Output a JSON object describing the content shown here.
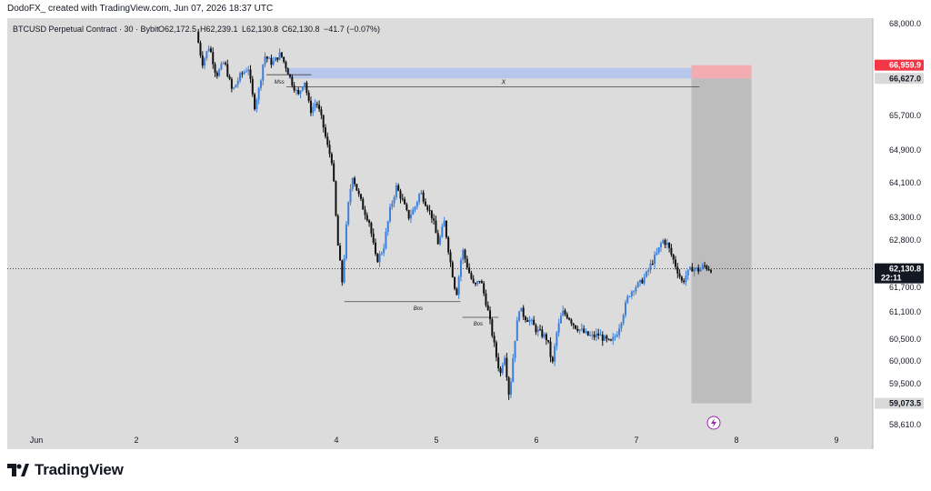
{
  "header": {
    "attribution": "DodoFX_ created with TradingView.com, Jun 07, 2026 18:37 UTC"
  },
  "legend": {
    "symbol": "BTCUSD Perpetual Contract · 30 · Bybit",
    "open": "O62,172.5",
    "high": "H62,239.1",
    "low": "L62,130.8",
    "close": "C62,130.8",
    "change": "−41.7 (−0.07%)"
  },
  "price_axis": {
    "ticks": [
      "68,000.0",
      "65,700.0",
      "64,900.0",
      "64,100.0",
      "63,300.0",
      "62,800.0",
      "61,700.0",
      "61,100.0",
      "60,500.0",
      "60,000.0",
      "59,500.0",
      "58,610.0"
    ],
    "tick_values": [
      68000,
      65700,
      64900,
      64100,
      63300,
      62800,
      61700,
      61100,
      60500,
      60000,
      59500,
      58610
    ],
    "stop_label": "66,959.9",
    "entry_label": "66,627.0",
    "target_label": "59,073.5",
    "current_price": "62,130.8",
    "countdown": "22:11"
  },
  "time_axis": {
    "labels": [
      "Jun",
      "2",
      "3",
      "4",
      "5",
      "6",
      "7",
      "8",
      "9"
    ]
  },
  "annotations": {
    "mss": "Mss",
    "x": "X",
    "bos1": "Bos",
    "bos2": "Bos"
  },
  "colors": {
    "background": "#dcdcdc",
    "up_candle": "#3d7fd9",
    "down_candle": "#111111",
    "stop_zone": "#f4a6ad",
    "entry_zone": "#b7c7ec",
    "target_zone": "#bdbdbd",
    "stop_badge": "#f23645",
    "entry_badge": "#d9d9d9",
    "current_badge": "#131722"
  },
  "chart_data": {
    "type": "candlestick",
    "title": "BTCUSD Perpetual Contract · 30 · Bybit",
    "xlabel": "",
    "ylabel": "",
    "ylim": [
      58400,
      68100
    ],
    "x_range_days": [
      1,
      9.2
    ],
    "price_levels": {
      "stop": 66959.9,
      "entry": 66627.0,
      "target": 59073.5,
      "current": 62130.8,
      "x_line": 66420,
      "bos1": 61350,
      "bos2": 60980
    },
    "path": [
      [
        2.62,
        67800
      ],
      [
        2.68,
        67000
      ],
      [
        2.75,
        67450
      ],
      [
        2.82,
        66700
      ],
      [
        2.9,
        67050
      ],
      [
        2.98,
        66300
      ],
      [
        3.06,
        66700
      ],
      [
        3.14,
        66900
      ],
      [
        3.2,
        65900
      ],
      [
        3.25,
        66400
      ],
      [
        3.3,
        67200
      ],
      [
        3.38,
        67000
      ],
      [
        3.46,
        67250
      ],
      [
        3.52,
        66900
      ],
      [
        3.58,
        66500
      ],
      [
        3.64,
        66200
      ],
      [
        3.7,
        66600
      ],
      [
        3.76,
        65800
      ],
      [
        3.82,
        66050
      ],
      [
        3.88,
        65550
      ],
      [
        3.93,
        65000
      ],
      [
        3.98,
        64600
      ],
      [
        4.03,
        62800
      ],
      [
        4.08,
        61800
      ],
      [
        4.13,
        63400
      ],
      [
        4.18,
        64300
      ],
      [
        4.23,
        63900
      ],
      [
        4.29,
        63500
      ],
      [
        4.35,
        63200
      ],
      [
        4.42,
        62300
      ],
      [
        4.49,
        62600
      ],
      [
        4.56,
        63500
      ],
      [
        4.62,
        64000
      ],
      [
        4.68,
        63700
      ],
      [
        4.74,
        63300
      ],
      [
        4.8,
        63500
      ],
      [
        4.86,
        63900
      ],
      [
        4.92,
        63600
      ],
      [
        4.98,
        63300
      ],
      [
        5.04,
        62700
      ],
      [
        5.1,
        63200
      ],
      [
        5.16,
        62300
      ],
      [
        5.22,
        61500
      ],
      [
        5.28,
        62600
      ],
      [
        5.34,
        62100
      ],
      [
        5.4,
        61700
      ],
      [
        5.46,
        61900
      ],
      [
        5.52,
        61300
      ],
      [
        5.58,
        60600
      ],
      [
        5.62,
        60100
      ],
      [
        5.66,
        59700
      ],
      [
        5.7,
        60200
      ],
      [
        5.75,
        59200
      ],
      [
        5.8,
        60400
      ],
      [
        5.85,
        61200
      ],
      [
        5.9,
        61000
      ],
      [
        5.96,
        60900
      ],
      [
        6.02,
        60700
      ],
      [
        6.08,
        60600
      ],
      [
        6.13,
        60500
      ],
      [
        6.18,
        59900
      ],
      [
        6.22,
        60600
      ],
      [
        6.28,
        61100
      ],
      [
        6.34,
        61000
      ],
      [
        6.4,
        60800
      ],
      [
        6.46,
        60700
      ],
      [
        6.52,
        60600
      ],
      [
        6.58,
        60550
      ],
      [
        6.64,
        60600
      ],
      [
        6.7,
        60500
      ],
      [
        6.76,
        60400
      ],
      [
        6.82,
        60600
      ],
      [
        6.88,
        61000
      ],
      [
        6.94,
        61500
      ],
      [
        7.0,
        61700
      ],
      [
        7.06,
        61800
      ],
      [
        7.12,
        62000
      ],
      [
        7.18,
        62300
      ],
      [
        7.23,
        62500
      ],
      [
        7.28,
        62800
      ],
      [
        7.33,
        62700
      ],
      [
        7.38,
        62400
      ],
      [
        7.43,
        62100
      ],
      [
        7.48,
        61800
      ],
      [
        7.52,
        62000
      ],
      [
        7.58,
        62150
      ],
      [
        7.64,
        62100
      ],
      [
        7.7,
        62200
      ],
      [
        7.75,
        62131
      ]
    ]
  }
}
